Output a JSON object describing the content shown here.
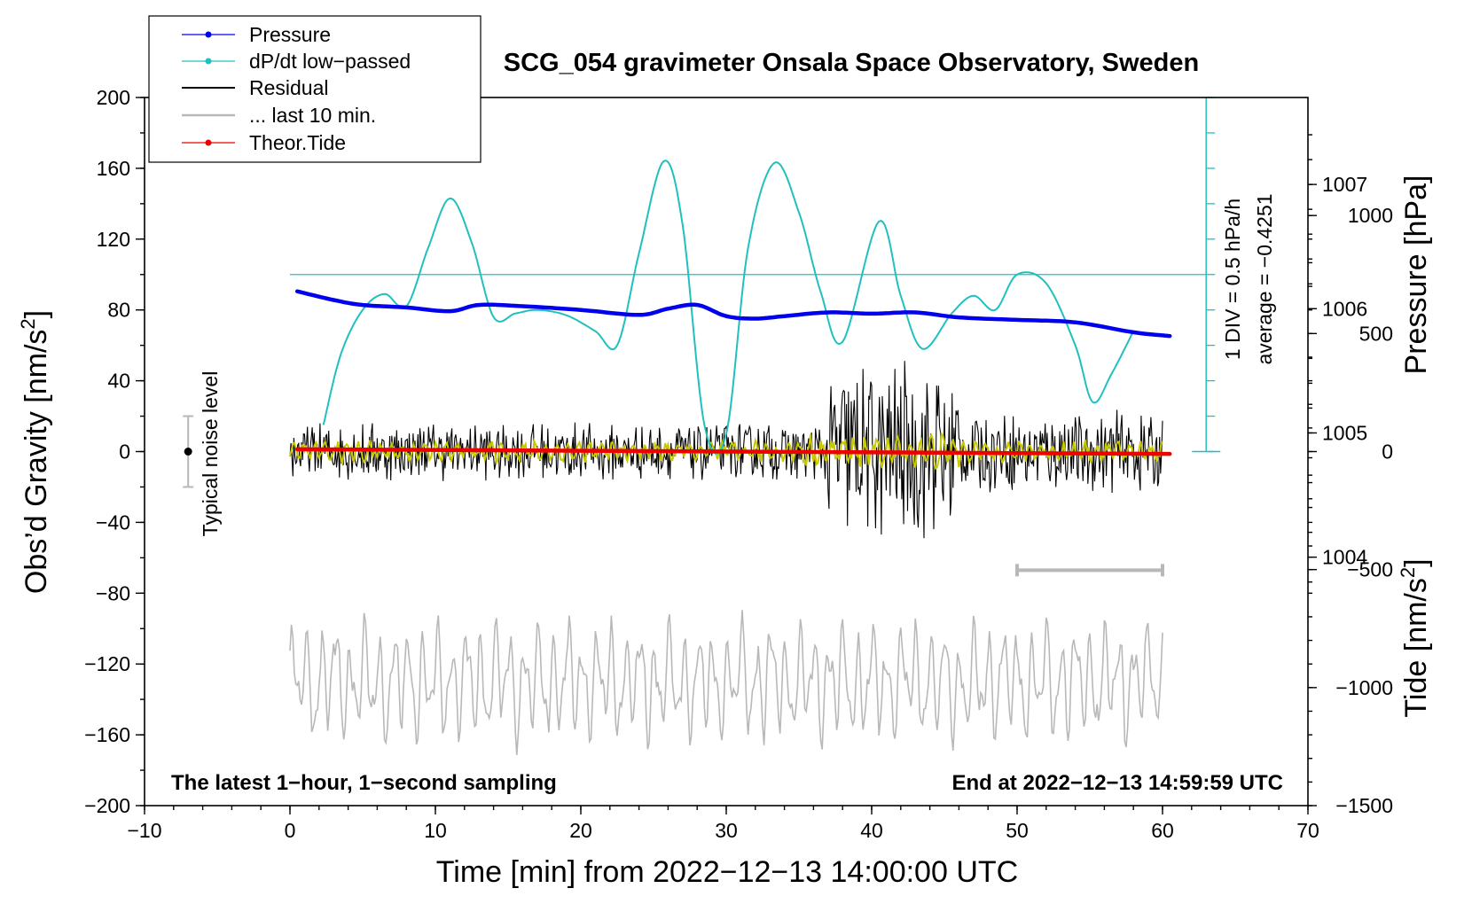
{
  "chart_data": {
    "type": "line",
    "title": "SCG_054 gravimeter Onsala Space Observatory, Sweden",
    "xlabel": "Time [min] from 2022−12−13 14:00:00 UTC",
    "ylabel_left": "Obs’d Gravity [nm/s",
    "ylabel_left_sup": "2",
    "ylabel_left_tail": "]",
    "ylabel_right_pressure": "Pressure [hPa]",
    "ylabel_right_tide": "Tide [nm/s",
    "ylabel_right_tide_sup": "2",
    "ylabel_right_tide_tail": "]",
    "xlim": [
      -10,
      70
    ],
    "ylim": [
      -200,
      200
    ],
    "pressure_lim": [
      1002,
      1007.7
    ],
    "tide_lim": [
      -1500,
      1500
    ],
    "x_ticks": [
      "−10",
      "0",
      "10",
      "20",
      "30",
      "40",
      "50",
      "60",
      "70"
    ],
    "y_ticks": [
      "200",
      "160",
      "120",
      "80",
      "40",
      "0",
      "−40",
      "−80",
      "−120",
      "−160",
      "−200"
    ],
    "pressure_ticks": [
      "1007",
      "1006",
      "1005",
      "1004"
    ],
    "tide_ticks": [
      "1000",
      "500",
      "0",
      "−500",
      "−1000",
      "−1500"
    ],
    "legend": {
      "placement": "top-left",
      "entries": [
        "Pressure",
        "dP/dt low−passed",
        "Residual",
        "... last 10 min.",
        "Theor.Tide"
      ]
    },
    "annotations": {
      "noise": "Typical noise level",
      "div": "1 DIV = 0.5 hPa/h",
      "average": "average = −0.4251",
      "bottom_left": "The latest 1−hour, 1−second sampling",
      "bottom_right": "End at 2022−12−13 14:59:59 UTC"
    },
    "noise_bar": {
      "x": -7,
      "center": 0,
      "range": [
        -20,
        20
      ]
    },
    "last10_bar": {
      "x": [
        50,
        60
      ],
      "y": -67
    },
    "dpdt_zero_line": 100,
    "dpdt_scale_bar": {
      "x": 63,
      "range": [
        0,
        200
      ]
    },
    "series": [
      {
        "name": "Pressure",
        "color": "#0000ee",
        "axis": "pressure",
        "unit": "hPa",
        "x": [
          0.5,
          3,
          5,
          8,
          11,
          13,
          16,
          20,
          24,
          26,
          28,
          30,
          32,
          34,
          37,
          40,
          43,
          46,
          50,
          54,
          58,
          60.5
        ],
        "y": [
          1006.14,
          1006.07,
          1006.03,
          1006.01,
          1005.98,
          1006.03,
          1006.02,
          1005.99,
          1005.95,
          1006.0,
          1006.03,
          1005.94,
          1005.92,
          1005.94,
          1005.97,
          1005.96,
          1005.97,
          1005.93,
          1005.91,
          1005.89,
          1005.81,
          1005.78
        ]
      },
      {
        "name": "dP/dt low−passed",
        "color": "#20c0c0",
        "axis": "gravity_scaled",
        "x": [
          2.3,
          3.5,
          5,
          6.5,
          8,
          9.5,
          11,
          12.5,
          14,
          15.5,
          17,
          19,
          21,
          22.5,
          24,
          25.7,
          27,
          28.5,
          30,
          31.5,
          33.3,
          35,
          36.5,
          38,
          40.5,
          42,
          43.5,
          45.5,
          47,
          48.5,
          50,
          52,
          54,
          55.2,
          56.5,
          58
        ],
        "y": [
          15,
          55,
          80,
          89,
          82,
          115,
          143,
          118,
          76,
          78,
          80,
          77,
          68,
          60,
          112,
          164,
          128,
          15,
          10,
          115,
          163,
          135,
          90,
          62,
          130,
          88,
          58,
          78,
          88,
          80,
          100,
          95,
          60,
          28,
          44,
          68
        ]
      },
      {
        "name": "Residual",
        "color": "#000000",
        "axis": "gravity",
        "x_range": [
          0,
          60
        ],
        "amplitude_by_minute": {
          "0-37": 18,
          "37-46": 55,
          "46-60": 25
        }
      },
      {
        "name": "... last 10 min.",
        "color": "#b8b8b8",
        "axis": "gravity_offset",
        "x_range": [
          0,
          60
        ],
        "baseline": -130,
        "amplitude": 25
      },
      {
        "name": "Theor.Tide",
        "color": "#ee0000",
        "axis": "tide",
        "unit": "nm/s^2",
        "x": [
          0.5,
          60.5
        ],
        "y": [
          10,
          -10
        ]
      },
      {
        "name": "Residual smoothed",
        "color": "#c8c800",
        "axis": "gravity",
        "x_range": [
          0,
          60
        ],
        "amplitude": 7
      }
    ]
  }
}
